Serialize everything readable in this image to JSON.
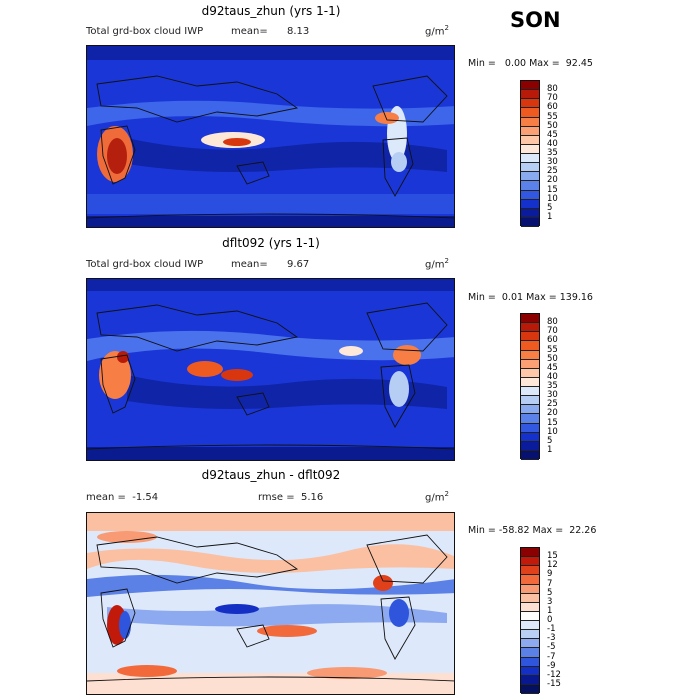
{
  "season": "SON",
  "panels": [
    {
      "title": "d92taus_zhun (yrs 1-1)",
      "variable": "Total grd-box cloud IWP",
      "stat_label": "mean=",
      "stat_value": "8.13",
      "units": "g/m",
      "units_exp": "2",
      "min_label": "Min =",
      "min_value": "0.00",
      "max_label": "Max =",
      "max_value": "92.45",
      "levels": [
        "80",
        "70",
        "60",
        "55",
        "50",
        "45",
        "40",
        "35",
        "30",
        "25",
        "20",
        "15",
        "10",
        "5",
        "1"
      ]
    },
    {
      "title": "dflt092 (yrs 1-1)",
      "variable": "Total grd-box cloud IWP",
      "stat_label": "mean=",
      "stat_value": "9.67",
      "units": "g/m",
      "units_exp": "2",
      "min_label": "Min =",
      "min_value": "0.01",
      "max_label": "Max =",
      "max_value": "139.16",
      "levels": [
        "80",
        "70",
        "60",
        "55",
        "50",
        "45",
        "40",
        "35",
        "30",
        "25",
        "20",
        "15",
        "10",
        "5",
        "1"
      ]
    },
    {
      "title": "d92taus_zhun - dflt092",
      "mean_label": "mean =",
      "mean_value": "-1.54",
      "rmse_label": "rmse =",
      "rmse_value": "5.16",
      "units": "g/m",
      "units_exp": "2",
      "min_label": "Min =",
      "min_value": "-58.82",
      "max_label": "Max =",
      "max_value": "22.26",
      "levels": [
        "15",
        "12",
        "9",
        "7",
        "5",
        "3",
        "1",
        "0",
        "-1",
        "-3",
        "-5",
        "-7",
        "-9",
        "-12",
        "-15"
      ]
    }
  ],
  "colors": {
    "abs_scale": [
      "#8b0000",
      "#b81a0a",
      "#d8360f",
      "#ee5a1f",
      "#f77e45",
      "#fba075",
      "#fdc7a8",
      "#fde8d9",
      "#dce9fb",
      "#b6cdf4",
      "#8aaaf0",
      "#5b82e8",
      "#3257e0",
      "#1531cc",
      "#0a1c9c",
      "#061170"
    ],
    "diff_scale": [
      "#8b0000",
      "#c21a0a",
      "#e0401a",
      "#f26a3c",
      "#f89a74",
      "#fbbfa2",
      "#fde0d1",
      "#ffffff",
      "#dde8fa",
      "#b9cff4",
      "#8daaf0",
      "#5b80e6",
      "#2e55db",
      "#1430c4",
      "#0a1890",
      "#05105e"
    ]
  }
}
